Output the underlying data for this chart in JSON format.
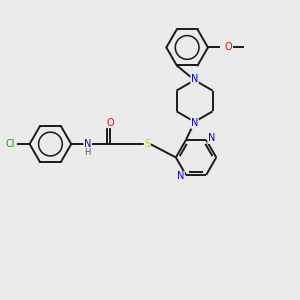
{
  "background_color": "#ebebeb",
  "bond_color": "#1a1a1a",
  "lw": 1.4,
  "atom_colors": {
    "Cl": "#00aa00",
    "O": "#ff0000",
    "N": "#0000ee",
    "S": "#cccc00",
    "H": "#555555",
    "C": "#1a1a1a"
  },
  "fontsize": 7.0,
  "figsize": [
    3.0,
    3.0
  ],
  "dpi": 100
}
